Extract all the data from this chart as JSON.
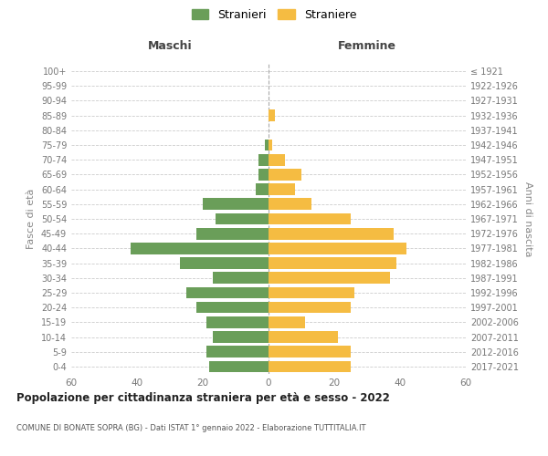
{
  "age_groups": [
    "0-4",
    "5-9",
    "10-14",
    "15-19",
    "20-24",
    "25-29",
    "30-34",
    "35-39",
    "40-44",
    "45-49",
    "50-54",
    "55-59",
    "60-64",
    "65-69",
    "70-74",
    "75-79",
    "80-84",
    "85-89",
    "90-94",
    "95-99",
    "100+"
  ],
  "birth_years": [
    "2017-2021",
    "2012-2016",
    "2007-2011",
    "2002-2006",
    "1997-2001",
    "1992-1996",
    "1987-1991",
    "1982-1986",
    "1977-1981",
    "1972-1976",
    "1967-1971",
    "1962-1966",
    "1957-1961",
    "1952-1956",
    "1947-1951",
    "1942-1946",
    "1937-1941",
    "1932-1936",
    "1927-1931",
    "1922-1926",
    "≤ 1921"
  ],
  "maschi": [
    18,
    19,
    17,
    19,
    22,
    25,
    17,
    27,
    42,
    22,
    16,
    20,
    4,
    3,
    3,
    1,
    0,
    0,
    0,
    0,
    0
  ],
  "femmine": [
    25,
    25,
    21,
    11,
    25,
    26,
    37,
    39,
    42,
    38,
    25,
    13,
    8,
    10,
    5,
    1,
    0,
    2,
    0,
    0,
    0
  ],
  "maschi_color": "#6a9e59",
  "femmine_color": "#f5bc42",
  "background_color": "#ffffff",
  "grid_color": "#cccccc",
  "title": "Popolazione per cittadinanza straniera per età e sesso - 2022",
  "subtitle": "COMUNE DI BONATE SOPRA (BG) - Dati ISTAT 1° gennaio 2022 - Elaborazione TUTTITALIA.IT",
  "xlabel_left": "Maschi",
  "xlabel_right": "Femmine",
  "ylabel_left": "Fasce di età",
  "ylabel_right": "Anni di nascita",
  "xlim": 60,
  "legend_labels": [
    "Stranieri",
    "Straniere"
  ]
}
